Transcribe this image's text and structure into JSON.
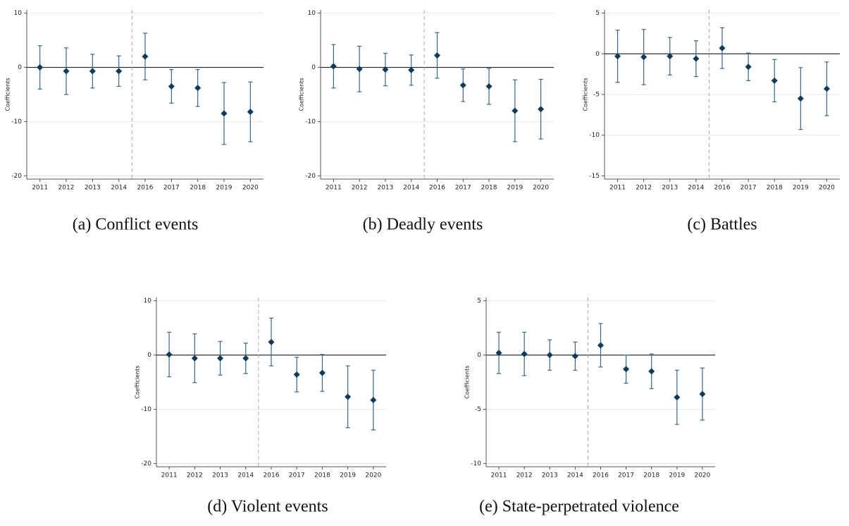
{
  "chart_data": [
    {
      "type": "errorbar",
      "title": "(a) Conflict events",
      "y_label": "Coefficients",
      "color": "#0b3a5f",
      "categories": [
        "2011",
        "2012",
        "2013",
        "2014",
        "2016",
        "2017",
        "2018",
        "2019",
        "2020"
      ],
      "values": [
        0,
        -0.7,
        -0.7,
        -0.7,
        2.0,
        -3.5,
        -3.8,
        -8.5,
        -8.2
      ],
      "errors": [
        4.0,
        4.3,
        3.1,
        2.8,
        4.3,
        3.1,
        3.4,
        5.7,
        5.5
      ],
      "ylim": [
        -20.6,
        10.6
      ],
      "yticks": [
        -20,
        -10,
        0,
        10
      ],
      "grid": true
    },
    {
      "type": "errorbar",
      "title": "(b) Deadly events",
      "y_label": "Coefficients",
      "color": "#0b3a5f",
      "categories": [
        "2011",
        "2012",
        "2013",
        "2014",
        "2016",
        "2017",
        "2018",
        "2019",
        "2020"
      ],
      "values": [
        0.2,
        -0.3,
        -0.4,
        -0.5,
        2.2,
        -3.3,
        -3.5,
        -8.0,
        -7.7
      ],
      "errors": [
        4.0,
        4.2,
        3.0,
        2.8,
        4.2,
        3.0,
        3.3,
        5.7,
        5.5
      ],
      "ylim": [
        -20.6,
        10.6
      ],
      "yticks": [
        -20,
        -10,
        0,
        10
      ],
      "grid": true
    },
    {
      "type": "errorbar",
      "title": "(c) Battles",
      "y_label": "Coefficients",
      "color": "#0b3a5f",
      "categories": [
        "2011",
        "2012",
        "2013",
        "2014",
        "2016",
        "2017",
        "2018",
        "2019",
        "2020"
      ],
      "values": [
        -0.3,
        -0.4,
        -0.3,
        -0.6,
        0.7,
        -1.6,
        -3.3,
        -5.5,
        -4.3
      ],
      "errors": [
        3.2,
        3.4,
        2.3,
        2.2,
        2.5,
        1.7,
        2.6,
        3.8,
        3.3
      ],
      "ylim": [
        -15.4,
        5.4
      ],
      "yticks": [
        -15,
        -10,
        -5,
        0,
        5
      ],
      "grid": true
    },
    {
      "type": "errorbar",
      "title": "(d) Violent events",
      "y_label": "Coefficients",
      "color": "#0b3a5f",
      "categories": [
        "2011",
        "2012",
        "2013",
        "2014",
        "2016",
        "2017",
        "2018",
        "2019",
        "2020"
      ],
      "values": [
        0.1,
        -0.6,
        -0.6,
        -0.6,
        2.4,
        -3.6,
        -3.3,
        -7.7,
        -8.3
      ],
      "errors": [
        4.1,
        4.5,
        3.1,
        2.8,
        4.4,
        3.2,
        3.4,
        5.7,
        5.5
      ],
      "ylim": [
        -20.6,
        10.6
      ],
      "yticks": [
        -20,
        -10,
        0,
        10
      ],
      "grid": true
    },
    {
      "type": "errorbar",
      "title": "(e) State-perpetrated violence",
      "y_label": "Coefficients",
      "color": "#0b3a5f",
      "categories": [
        "2011",
        "2012",
        "2013",
        "2014",
        "2016",
        "2017",
        "2018",
        "2019",
        "2020"
      ],
      "values": [
        0.2,
        0.1,
        0,
        -0.1,
        0.9,
        -1.3,
        -1.5,
        -3.9,
        -3.6
      ],
      "errors": [
        1.9,
        2.0,
        1.4,
        1.3,
        2.0,
        1.3,
        1.6,
        2.5,
        2.4
      ],
      "ylim": [
        -10.3,
        5.3
      ],
      "yticks": [
        -10,
        -5,
        0,
        5
      ],
      "grid": true
    }
  ]
}
